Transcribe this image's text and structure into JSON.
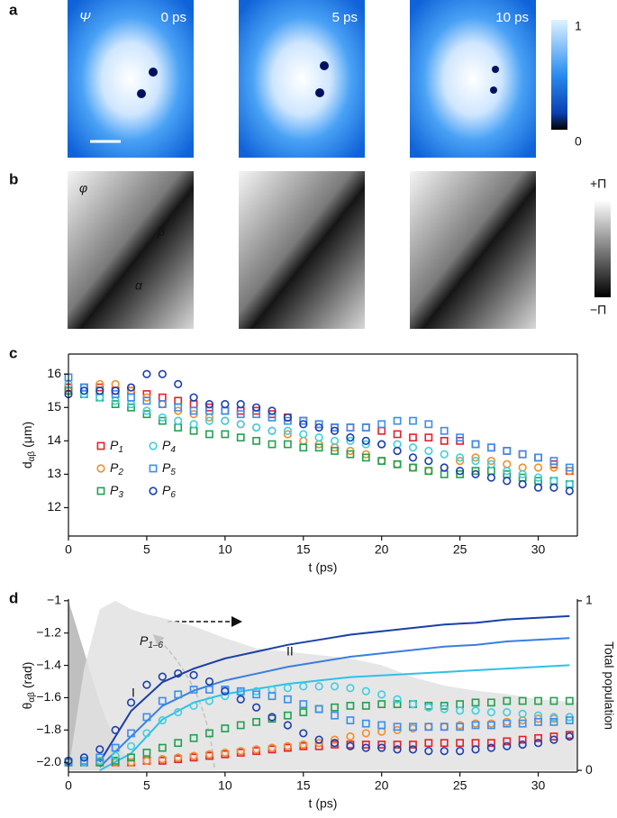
{
  "image_panels": [
    {
      "letter": "a",
      "label": "Ψ",
      "times": [
        "0 ps",
        "5 ps",
        "10 ps"
      ],
      "colorbar_ticks": [
        1,
        0
      ]
    },
    {
      "letter": "b",
      "label": "φ",
      "markers": [
        "β",
        "α"
      ],
      "colorbar_ticks": [
        "+Π",
        "−Π"
      ]
    }
  ],
  "chart_data": [
    {
      "type": "scatter",
      "letter": "c",
      "xlabel": "t (ps)",
      "ylabel": "dαβ (μm)",
      "xlim": [
        0,
        32.5
      ],
      "xticks": [
        0,
        5,
        10,
        15,
        20,
        25,
        30
      ],
      "ylim": [
        11.15,
        16.6
      ],
      "yticks": [
        12,
        13,
        14,
        15,
        16
      ],
      "x": [
        0,
        1,
        2,
        3,
        4,
        5,
        6,
        7,
        8,
        9,
        10,
        11,
        12,
        13,
        14,
        15,
        16,
        17,
        18,
        19,
        20,
        21,
        22,
        23,
        24,
        25,
        26,
        27,
        28,
        29,
        30,
        31,
        32
      ],
      "series": [
        {
          "name": "P1",
          "color": "#e3202b",
          "marker": "square",
          "values": [
            15.6,
            15.6,
            15.6,
            15.5,
            15.5,
            15.4,
            15.3,
            15.2,
            15.1,
            15.0,
            14.9,
            14.9,
            14.9,
            14.8,
            14.7,
            14.6,
            14.5,
            14.4,
            14.4,
            14.4,
            14.3,
            14.2,
            14.1,
            14.1,
            14.0,
            14.0,
            13.9,
            13.8,
            13.7,
            13.6,
            13.5,
            13.3,
            13.1
          ]
        },
        {
          "name": "P2",
          "color": "#ef8f2a",
          "marker": "circle",
          "values": [
            15.5,
            15.6,
            15.7,
            15.7,
            15.5,
            15.3,
            15.1,
            14.9,
            14.8,
            14.7,
            14.6,
            14.5,
            14.4,
            14.3,
            14.2,
            14.0,
            13.9,
            13.8,
            13.7,
            13.6,
            13.4,
            13.3,
            13.2,
            13.1,
            13.2,
            13.4,
            13.5,
            13.4,
            13.3,
            13.2,
            13.2,
            13.2,
            13.1
          ]
        },
        {
          "name": "P3",
          "color": "#22a050",
          "marker": "square",
          "values": [
            15.5,
            15.4,
            15.3,
            15.1,
            15.0,
            14.8,
            14.6,
            14.4,
            14.3,
            14.2,
            14.2,
            14.1,
            14.0,
            13.9,
            13.9,
            13.8,
            13.8,
            13.7,
            13.6,
            13.5,
            13.4,
            13.3,
            13.2,
            13.1,
            13.0,
            13.0,
            13.1,
            13.1,
            13.0,
            12.9,
            12.8,
            12.8,
            12.7
          ]
        },
        {
          "name": "P4",
          "color": "#3fcfe0",
          "marker": "circle",
          "values": [
            15.7,
            15.4,
            15.3,
            15.2,
            15.1,
            14.9,
            14.7,
            14.6,
            14.5,
            14.6,
            14.6,
            14.5,
            14.4,
            14.3,
            14.3,
            14.2,
            14.1,
            14.0,
            14.0,
            13.9,
            13.9,
            13.9,
            13.8,
            13.7,
            13.6,
            13.5,
            13.4,
            13.3,
            13.1,
            13.0,
            12.9,
            12.8,
            12.7
          ]
        },
        {
          "name": "P5",
          "color": "#3a8ef0",
          "marker": "square",
          "values": [
            15.9,
            15.6,
            15.5,
            15.4,
            15.3,
            15.2,
            15.1,
            15.0,
            14.9,
            14.9,
            14.9,
            14.8,
            14.8,
            14.7,
            14.6,
            14.6,
            14.5,
            14.4,
            14.4,
            14.4,
            14.5,
            14.6,
            14.6,
            14.5,
            14.3,
            14.1,
            13.9,
            13.8,
            13.7,
            13.6,
            13.5,
            13.4,
            13.2
          ]
        },
        {
          "name": "P6",
          "color": "#1a3fb0",
          "marker": "circle",
          "values": [
            15.4,
            15.5,
            15.5,
            15.5,
            15.6,
            16.0,
            16.0,
            15.7,
            15.3,
            15.1,
            15.1,
            15.1,
            15.0,
            14.9,
            14.7,
            14.5,
            14.4,
            14.3,
            14.1,
            14.0,
            13.9,
            13.7,
            13.5,
            13.4,
            13.2,
            13.1,
            13.0,
            12.9,
            12.8,
            12.7,
            12.6,
            12.6,
            12.5
          ]
        }
      ]
    },
    {
      "type": "scatter",
      "letter": "d",
      "xlabel": "t (ps)",
      "ylabel": "θαβ (rad)",
      "y2label": "Total population",
      "annotations": [
        "I",
        "II",
        "P1–6"
      ],
      "xlim": [
        0,
        32.5
      ],
      "xticks": [
        0,
        5,
        10,
        15,
        20,
        25,
        30
      ],
      "ylim": [
        -2.06,
        -0.99
      ],
      "yticks": [
        {
          "value": -2.0,
          "label": "−2.0"
        },
        {
          "value": -1.8,
          "label": "−1.8"
        },
        {
          "value": -1.6,
          "label": "−1.6"
        },
        {
          "value": -1.4,
          "label": "−1.4"
        },
        {
          "value": -1.2,
          "label": "−1.2"
        },
        {
          "value": -1,
          "label": "−1"
        }
      ],
      "y2lim": [
        -0.01,
        1.01
      ],
      "y2ticks": [
        0,
        1
      ],
      "x": [
        0,
        1,
        2,
        3,
        4,
        5,
        6,
        7,
        8,
        9,
        10,
        11,
        12,
        13,
        14,
        15,
        16,
        17,
        18,
        19,
        20,
        21,
        22,
        23,
        24,
        25,
        26,
        27,
        28,
        29,
        30,
        31,
        32
      ],
      "series": [
        {
          "style": "area",
          "axis": "y2",
          "color": "#b4b4b4",
          "x": [
            0,
            0.5,
            1,
            1.5,
            2,
            2.5,
            3,
            3.5,
            4,
            4.5
          ],
          "values": [
            1.0,
            0.85,
            0.7,
            0.55,
            0.4,
            0.28,
            0.18,
            0.1,
            0.04,
            0
          ]
        },
        {
          "style": "area",
          "axis": "y2",
          "color": "#e2e2e2",
          "x": [
            0,
            1,
            2,
            3,
            4,
            5,
            6,
            8,
            10,
            12,
            14,
            16,
            18,
            20,
            22,
            24,
            26,
            28,
            30,
            32.5
          ],
          "values": [
            0,
            0.6,
            0.95,
            1.0,
            0.95,
            0.92,
            0.9,
            0.85,
            0.78,
            0.72,
            0.7,
            0.68,
            0.66,
            0.62,
            0.55,
            0.5,
            0.47,
            0.45,
            0.42,
            0.4
          ]
        },
        {
          "style": "line",
          "axis": "y2",
          "color": "#1a3fa8",
          "x": [
            2,
            4,
            6,
            8,
            10,
            12,
            14,
            16,
            18,
            20,
            22,
            24,
            26,
            28,
            30,
            32
          ],
          "values": [
            0.05,
            0.35,
            0.52,
            0.6,
            0.66,
            0.7,
            0.74,
            0.77,
            0.8,
            0.82,
            0.84,
            0.86,
            0.87,
            0.89,
            0.9,
            0.91
          ]
        },
        {
          "style": "line",
          "axis": "y2",
          "color": "#3a7ee0",
          "x": [
            2,
            4,
            6,
            8,
            10,
            12,
            14,
            16,
            18,
            20,
            22,
            24,
            26,
            28,
            30,
            32
          ],
          "values": [
            0.02,
            0.2,
            0.38,
            0.47,
            0.53,
            0.57,
            0.61,
            0.64,
            0.67,
            0.69,
            0.71,
            0.73,
            0.74,
            0.76,
            0.77,
            0.78
          ]
        },
        {
          "style": "line",
          "axis": "y2",
          "color": "#30c0e8",
          "x": [
            2,
            4,
            6,
            8,
            10,
            12,
            14,
            16,
            18,
            20,
            22,
            24,
            26,
            28,
            30,
            32
          ],
          "values": [
            0.0,
            0.1,
            0.3,
            0.4,
            0.45,
            0.48,
            0.51,
            0.53,
            0.55,
            0.56,
            0.57,
            0.58,
            0.59,
            0.6,
            0.61,
            0.62
          ]
        },
        {
          "color": "#e3202b",
          "marker": "square",
          "values": [
            -2.0,
            -2.0,
            -2.0,
            -2.0,
            -2.0,
            -1.99,
            -1.99,
            -1.98,
            -1.97,
            -1.96,
            -1.95,
            -1.94,
            -1.93,
            -1.92,
            -1.91,
            -1.9,
            -1.9,
            -1.89,
            -1.89,
            -1.89,
            -1.89,
            -1.89,
            -1.89,
            -1.88,
            -1.88,
            -1.88,
            -1.88,
            -1.88,
            -1.87,
            -1.86,
            -1.85,
            -1.84,
            -1.83
          ]
        },
        {
          "color": "#ef8f2a",
          "marker": "circle",
          "values": [
            -2.0,
            -2.0,
            -2.0,
            -2.0,
            -2.0,
            -1.99,
            -1.98,
            -1.97,
            -1.96,
            -1.95,
            -1.94,
            -1.93,
            -1.92,
            -1.91,
            -1.9,
            -1.89,
            -1.88,
            -1.86,
            -1.84,
            -1.82,
            -1.81,
            -1.8,
            -1.79,
            -1.78,
            -1.78,
            -1.77,
            -1.76,
            -1.76,
            -1.75,
            -1.74,
            -1.73,
            -1.73,
            -1.72
          ]
        },
        {
          "color": "#22a050",
          "marker": "square",
          "values": [
            -2.0,
            -2.0,
            -2.0,
            -1.99,
            -1.97,
            -1.94,
            -1.91,
            -1.88,
            -1.85,
            -1.82,
            -1.79,
            -1.77,
            -1.75,
            -1.73,
            -1.71,
            -1.69,
            -1.67,
            -1.66,
            -1.65,
            -1.65,
            -1.64,
            -1.64,
            -1.64,
            -1.65,
            -1.65,
            -1.64,
            -1.63,
            -1.63,
            -1.62,
            -1.62,
            -1.62,
            -1.62,
            -1.62
          ]
        },
        {
          "color": "#3fcfe0",
          "marker": "circle",
          "values": [
            -2.0,
            -2.0,
            -1.99,
            -1.96,
            -1.9,
            -1.82,
            -1.74,
            -1.69,
            -1.65,
            -1.62,
            -1.59,
            -1.57,
            -1.56,
            -1.55,
            -1.54,
            -1.53,
            -1.53,
            -1.53,
            -1.54,
            -1.56,
            -1.58,
            -1.61,
            -1.64,
            -1.66,
            -1.67,
            -1.68,
            -1.68,
            -1.69,
            -1.69,
            -1.7,
            -1.71,
            -1.72,
            -1.72
          ]
        },
        {
          "color": "#3a8ef0",
          "marker": "square",
          "values": [
            -2.0,
            -1.99,
            -1.97,
            -1.91,
            -1.82,
            -1.72,
            -1.62,
            -1.58,
            -1.55,
            -1.55,
            -1.55,
            -1.56,
            -1.58,
            -1.59,
            -1.61,
            -1.64,
            -1.67,
            -1.71,
            -1.74,
            -1.76,
            -1.77,
            -1.78,
            -1.78,
            -1.78,
            -1.78,
            -1.78,
            -1.77,
            -1.77,
            -1.76,
            -1.76,
            -1.75,
            -1.75,
            -1.74
          ]
        },
        {
          "color": "#1a3fb0",
          "marker": "circle",
          "values": [
            -1.99,
            -1.97,
            -1.92,
            -1.8,
            -1.63,
            -1.52,
            -1.47,
            -1.45,
            -1.46,
            -1.5,
            -1.56,
            -1.61,
            -1.66,
            -1.72,
            -1.77,
            -1.82,
            -1.86,
            -1.88,
            -1.9,
            -1.91,
            -1.91,
            -1.92,
            -1.92,
            -1.93,
            -1.93,
            -1.93,
            -1.92,
            -1.91,
            -1.9,
            -1.89,
            -1.88,
            -1.86,
            -1.84
          ]
        }
      ]
    }
  ]
}
